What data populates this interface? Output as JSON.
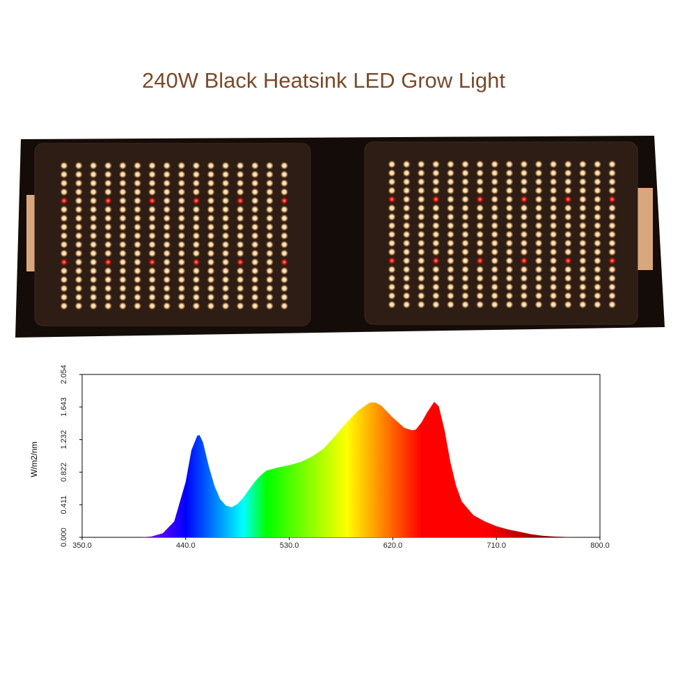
{
  "header": {
    "title": "240W Black Heatsink LED Grow Light"
  },
  "chart_data": {
    "type": "area",
    "y_label": "W/m2/nm",
    "x": [
      350,
      400,
      410,
      420,
      430,
      440,
      445,
      450,
      452,
      455,
      460,
      465,
      470,
      475,
      480,
      485,
      490,
      495,
      500,
      505,
      510,
      520,
      530,
      540,
      550,
      560,
      570,
      580,
      590,
      600,
      605,
      610,
      620,
      630,
      637,
      640,
      645,
      650,
      656,
      660,
      665,
      670,
      675,
      680,
      690,
      700,
      710,
      720,
      730,
      740,
      750,
      760,
      780,
      800
    ],
    "values": [
      0,
      0,
      0.01,
      0.05,
      0.2,
      0.7,
      1.1,
      1.28,
      1.29,
      1.2,
      0.9,
      0.65,
      0.48,
      0.4,
      0.38,
      0.42,
      0.5,
      0.6,
      0.7,
      0.78,
      0.84,
      0.88,
      0.91,
      0.95,
      1.02,
      1.12,
      1.28,
      1.45,
      1.6,
      1.7,
      1.7,
      1.66,
      1.51,
      1.38,
      1.35,
      1.36,
      1.45,
      1.58,
      1.71,
      1.65,
      1.35,
      0.95,
      0.65,
      0.45,
      0.28,
      0.2,
      0.14,
      0.1,
      0.07,
      0.04,
      0.02,
      0.01,
      0,
      0
    ],
    "fill": "wavelength-spectrum",
    "xlim": [
      350,
      800
    ],
    "xticks": [
      {
        "value": 350,
        "label": "350.0"
      },
      {
        "value": 440,
        "label": "440.0"
      },
      {
        "value": 530,
        "label": "530.0"
      },
      {
        "value": 620,
        "label": "620.0"
      },
      {
        "value": 710,
        "label": "710.0"
      },
      {
        "value": 800,
        "label": "800.0"
      }
    ],
    "ylim": [
      0,
      2.054
    ],
    "yticks": [
      {
        "value": 0,
        "label": "0.000"
      },
      {
        "value": 0.411,
        "label": "0.411"
      },
      {
        "value": 0.822,
        "label": "0.822"
      },
      {
        "value": 1.232,
        "label": "1.232"
      },
      {
        "value": 1.643,
        "label": "1.643"
      },
      {
        "value": 2.054,
        "label": "2.054"
      }
    ]
  }
}
